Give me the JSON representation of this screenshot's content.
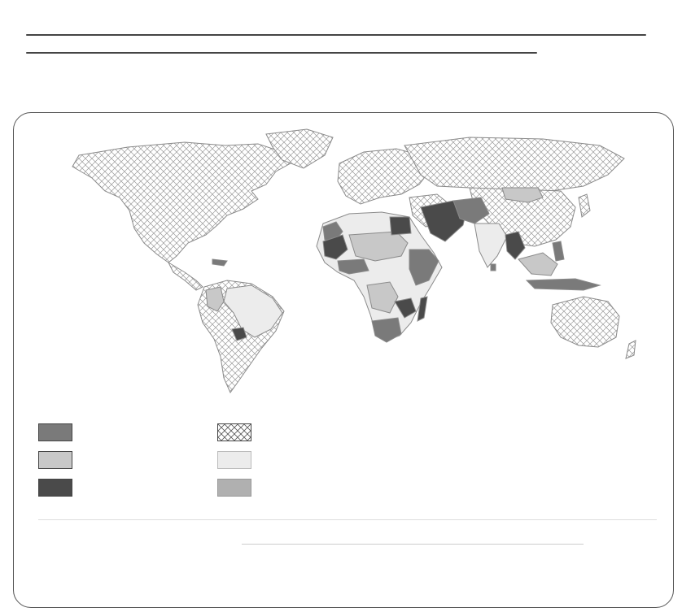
{
  "page": {
    "heading": "",
    "caption": ""
  },
  "colors": {
    "background": "#ffffff",
    "land_outline": "#8a8a8a",
    "hatch_stroke": "#9a9a9a",
    "cat_medium_gray": "#7a7a7a",
    "cat_light_gray": "#c8c8c8",
    "cat_dark_gray": "#4a4a4a",
    "cat_very_light": "#ececec",
    "cat_mid_light": "#b0b0b0"
  },
  "legend": {
    "items": [
      {
        "id": "medium",
        "fill": "cat_medium_gray",
        "label": ""
      },
      {
        "id": "light",
        "fill": "cat_light_gray",
        "label": ""
      },
      {
        "id": "dark",
        "fill": "cat_dark_gray",
        "label": ""
      },
      {
        "id": "hatched",
        "fill": "hatch",
        "label": ""
      },
      {
        "id": "verylight",
        "fill": "cat_very_light",
        "label": ""
      },
      {
        "id": "midlight",
        "fill": "cat_mid_light",
        "label": ""
      }
    ]
  }
}
